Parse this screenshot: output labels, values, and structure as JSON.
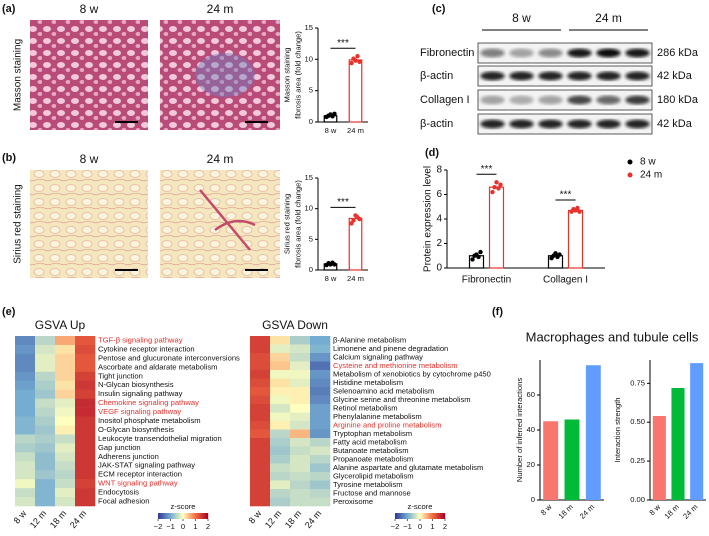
{
  "panels": [
    "(a)",
    "(b)",
    "(c)",
    "(d)",
    "(e)",
    "(f)"
  ],
  "histology": [
    {
      "stain_label": "Masson staining",
      "images": [
        "8 w",
        "24 m"
      ]
    },
    {
      "stain_label": "Sirius red staining",
      "images": [
        "8 w",
        "24 m"
      ]
    }
  ],
  "blot": {
    "groups": [
      "8 w",
      "24 m"
    ],
    "rows": [
      {
        "protein": "Fibronectin",
        "size": "286 kDa"
      },
      {
        "protein": "β-actin",
        "size": "42 kDa"
      },
      {
        "protein": "Collagen I",
        "size": "180 kDa"
      },
      {
        "protein": "β-actin",
        "size": "42 kDa"
      }
    ]
  },
  "chart_data": [
    {
      "type": "bar",
      "bar_style": "outline",
      "ylabel": [
        "Masson staining",
        "fibrosis area (fold change)"
      ],
      "categories": [
        "8 w",
        "24 m"
      ],
      "colors": [
        "#000000",
        "#e8322c"
      ],
      "values": [
        1.0,
        9.9
      ],
      "points": [
        [
          0.8,
          1.0,
          1.2,
          0.9,
          1.3
        ],
        [
          9.4,
          10.1,
          9.8,
          10.5,
          9.6
        ]
      ],
      "annotation": "***",
      "ylim": [
        0,
        15
      ],
      "yticks": [
        0,
        5,
        10,
        15
      ]
    },
    {
      "type": "bar",
      "bar_style": "outline",
      "ylabel": [
        "Sirius red staining",
        "fibrosis area (fold change)"
      ],
      "categories": [
        "8 w",
        "24 m"
      ],
      "colors": [
        "#000000",
        "#e8322c"
      ],
      "values": [
        1.0,
        8.4
      ],
      "points": [
        [
          0.8,
          1.1,
          0.9,
          1.2,
          0.9
        ],
        [
          7.6,
          8.1,
          8.9,
          8.6,
          8.3
        ]
      ],
      "annotation": "***",
      "ylim": [
        0,
        15
      ],
      "yticks": [
        0,
        5,
        10,
        15
      ]
    },
    {
      "type": "grouped_bar",
      "bar_style": "outline",
      "ylabel": [
        "Protein expression level"
      ],
      "categories": [
        "Fibronectin",
        "Collagen I"
      ],
      "series": [
        {
          "name": "8 w",
          "color": "#000000",
          "values": [
            1.0,
            1.0
          ],
          "points": [
            [
              0.7,
              1.0,
              1.1,
              0.9,
              1.3
            ],
            [
              0.8,
              1.0,
              1.2,
              0.9,
              1.1
            ]
          ]
        },
        {
          "name": "24 m",
          "color": "#e8322c",
          "values": [
            6.6,
            4.7
          ],
          "points": [
            [
              6.2,
              6.6,
              7.0,
              6.5,
              6.8
            ],
            [
              4.6,
              4.8,
              4.7,
              4.9,
              4.6
            ]
          ]
        }
      ],
      "annotations": [
        "***",
        "***"
      ],
      "ylim": [
        0,
        8
      ],
      "yticks": [
        0,
        2,
        4,
        6,
        8
      ]
    },
    {
      "type": "heatmap",
      "title": "GSVA Up",
      "columns": [
        "8 w",
        "12 m",
        "18 m",
        "24 m"
      ],
      "rows": [
        "TGF-β signaling pathway",
        "Cytokine receptor interaction",
        "Pentose and glucuronate interconversions",
        "Ascorbate and aldarate metabolism",
        "Tight junction",
        "N-Glycan biosynthesis",
        "Insulin signaling pathway",
        "Chemokine signaling pathway",
        "VEGF signaling pathway",
        "Inositol phosphate metabolism",
        "O-Glycan biosynthesis",
        "Leukocyte transendothelial migration",
        "Gap junction",
        "Adherens junction",
        "JAK-STAT signaling pathway",
        "ECM receptor interaction",
        "WNT signaling pathway",
        "Endocytosis",
        "Focal adhesion"
      ],
      "row_label_colors": [
        "#e8322c",
        "#111111",
        "#111111",
        "#111111",
        "#111111",
        "#111111",
        "#111111",
        "#e8322c",
        "#e8322c",
        "#111111",
        "#111111",
        "#111111",
        "#111111",
        "#111111",
        "#111111",
        "#111111",
        "#e8322c",
        "#111111",
        "#111111"
      ],
      "values": [
        [
          -1.3,
          -0.5,
          0.6,
          1.2
        ],
        [
          -1.2,
          -0.3,
          0.2,
          1.3
        ],
        [
          -1.3,
          -0.2,
          0.3,
          1.2
        ],
        [
          -1.3,
          -0.2,
          0.3,
          1.2
        ],
        [
          -1.2,
          -0.5,
          0.3,
          1.4
        ],
        [
          -1.1,
          -0.6,
          0.2,
          1.5
        ],
        [
          -1.0,
          -0.7,
          0.3,
          1.4
        ],
        [
          -1.0,
          -0.4,
          -0.2,
          1.6
        ],
        [
          -1.0,
          -0.5,
          -0.1,
          1.6
        ],
        [
          -0.9,
          -0.6,
          0.0,
          1.5
        ],
        [
          -0.9,
          -0.7,
          0.1,
          1.5
        ],
        [
          -0.5,
          -0.6,
          -0.4,
          1.5
        ],
        [
          -0.6,
          -0.7,
          -0.2,
          1.5
        ],
        [
          -0.4,
          -0.8,
          -0.3,
          1.5
        ],
        [
          -0.3,
          -0.8,
          -0.4,
          1.5
        ],
        [
          -0.3,
          -0.7,
          -0.5,
          1.5
        ],
        [
          -0.1,
          -0.9,
          -0.4,
          1.4
        ],
        [
          -0.4,
          -0.9,
          -0.2,
          1.5
        ],
        [
          -0.3,
          -0.9,
          -0.3,
          1.5
        ]
      ],
      "colorbar_label": "z-score",
      "colormap": [
        "#313695",
        "#74add1",
        "#ffffbf",
        "#f46d43",
        "#a50026"
      ],
      "zlim": [
        -2,
        2
      ],
      "zticks": [
        {
          "value": -2,
          "label": "−2"
        },
        {
          "value": -1,
          "label": "−1"
        },
        0,
        1,
        2
      ]
    },
    {
      "type": "heatmap",
      "title": "GSVA Down",
      "columns": [
        "8 w",
        "12 m",
        "18 m",
        "24 m"
      ],
      "rows": [
        "β-Alanine metabolism",
        "Limonene and pinene degradation",
        "Calcium signaling pathway",
        "Cysteine and methionine metabolism",
        "Metabolism of xenobiotics by cytochrome p450",
        "Histidine metabolism",
        "Selenoamino acid metabolism",
        "Glycine serine and threonine metabolism",
        "Retinol metabolism",
        "Phenylalanine metabolism",
        "Arginine and proline metabolism",
        "Tryptophan metabolism",
        "Fatty acid metabolism",
        "Butanoate metabolism",
        "Propanoate metabolism",
        "Alanine aspartate and glutamate metabolism",
        "Glycerolipid metabolism",
        "Tyrosine metabolism",
        "Fructose and mannose",
        "Peroxisome"
      ],
      "row_label_colors": [
        "#111111",
        "#111111",
        "#111111",
        "#e8322c",
        "#111111",
        "#111111",
        "#111111",
        "#111111",
        "#111111",
        "#111111",
        "#e8322c",
        "#111111",
        "#111111",
        "#111111",
        "#111111",
        "#111111",
        "#111111",
        "#111111",
        "#111111",
        "#111111"
      ],
      "values": [
        [
          1.4,
          0.2,
          -0.6,
          -1.0
        ],
        [
          1.4,
          -0.2,
          -0.3,
          -0.9
        ],
        [
          1.3,
          0.3,
          -0.4,
          -1.2
        ],
        [
          1.3,
          0.4,
          -0.2,
          -1.5
        ],
        [
          1.4,
          -0.1,
          -0.1,
          -1.2
        ],
        [
          1.3,
          0.2,
          -0.2,
          -1.3
        ],
        [
          1.2,
          0.1,
          0.1,
          -1.4
        ],
        [
          1.3,
          -0.1,
          0.1,
          -1.3
        ],
        [
          1.4,
          -0.3,
          0.0,
          -1.1
        ],
        [
          1.4,
          -0.1,
          -0.2,
          -1.1
        ],
        [
          1.3,
          0.1,
          -0.3,
          -1.1
        ],
        [
          1.2,
          -0.5,
          0.5,
          -1.2
        ],
        [
          1.4,
          -0.6,
          -0.3,
          -0.5
        ],
        [
          1.4,
          -0.7,
          -0.4,
          -0.3
        ],
        [
          1.4,
          -0.6,
          -0.3,
          -0.5
        ],
        [
          1.4,
          -0.4,
          -0.3,
          -0.7
        ],
        [
          1.4,
          -0.5,
          -0.4,
          -0.5
        ],
        [
          1.4,
          -0.2,
          -0.5,
          -0.7
        ],
        [
          1.4,
          -0.5,
          -0.4,
          -0.5
        ],
        [
          1.4,
          -0.6,
          -0.4,
          -0.4
        ]
      ],
      "colorbar_label": "z-score",
      "colormap": [
        "#313695",
        "#74add1",
        "#ffffbf",
        "#f46d43",
        "#a50026"
      ],
      "zlim": [
        -2,
        2
      ],
      "zticks": [
        {
          "value": -2,
          "label": "−2"
        },
        {
          "value": -1,
          "label": "−1"
        },
        0,
        1,
        2
      ]
    },
    {
      "type": "bar",
      "bar_style": "filled",
      "title": "Macrophages and tubule cells",
      "ylabel": [
        "Number of inferred interactions"
      ],
      "categories": [
        "8 w",
        "18 m",
        "24 m"
      ],
      "colors": [
        "#f8766d",
        "#00ba38",
        "#619cff"
      ],
      "values": [
        45,
        46,
        77
      ],
      "ylim": [
        0,
        80
      ],
      "yticks": [
        0,
        20,
        40,
        60
      ]
    },
    {
      "type": "bar",
      "bar_style": "filled",
      "ylabel": [
        "Interaction strength"
      ],
      "categories": [
        "8 w",
        "18 m",
        "24 m"
      ],
      "colors": [
        "#f8766d",
        "#00ba38",
        "#619cff"
      ],
      "values": [
        0.54,
        0.72,
        0.88
      ],
      "ylim": [
        0,
        0.9
      ],
      "yticks": [
        {
          "value": 0,
          "label": "0.00"
        },
        0.25,
        {
          "value": 0.5,
          "label": "0.50"
        },
        0.75
      ]
    }
  ]
}
